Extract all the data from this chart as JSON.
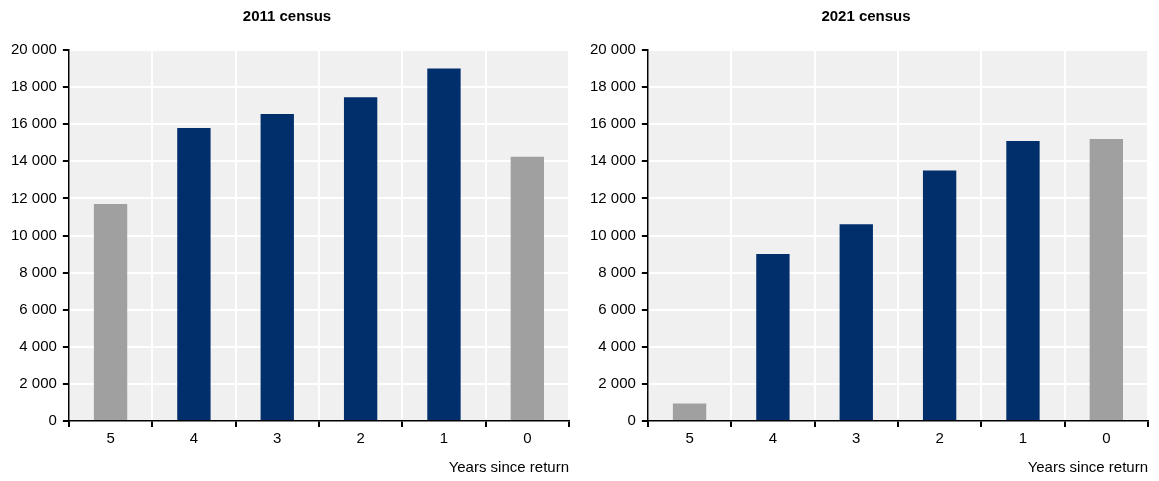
{
  "chart_data": [
    {
      "type": "bar",
      "title": "2011 census",
      "xlabel": "Years since return",
      "categories": [
        "5",
        "4",
        "3",
        "2",
        "1",
        "0"
      ],
      "values": [
        11700,
        15800,
        16550,
        17450,
        19000,
        14250
      ],
      "colors": [
        "#a0a0a0",
        "#002f6c",
        "#002f6c",
        "#002f6c",
        "#002f6c",
        "#a0a0a0"
      ],
      "ylim": [
        0,
        20000
      ],
      "yticks": [
        {
          "value": 0,
          "label": "0"
        },
        {
          "value": 2000,
          "label": "2 000"
        },
        {
          "value": 4000,
          "label": "4 000"
        },
        {
          "value": 6000,
          "label": "6 000"
        },
        {
          "value": 8000,
          "label": "8 000"
        },
        {
          "value": 10000,
          "label": "10 000"
        },
        {
          "value": 12000,
          "label": "12 000"
        },
        {
          "value": 14000,
          "label": "14 000"
        },
        {
          "value": 16000,
          "label": "16 000"
        },
        {
          "value": 18000,
          "label": "18 000"
        },
        {
          "value": 20000,
          "label": "20 000"
        }
      ],
      "grid": true,
      "legend": false
    },
    {
      "type": "bar",
      "title": "2021 census",
      "xlabel": "Years since return",
      "categories": [
        "5",
        "4",
        "3",
        "2",
        "1",
        "0"
      ],
      "values": [
        950,
        9000,
        10600,
        13500,
        15100,
        15200
      ],
      "colors": [
        "#a0a0a0",
        "#002f6c",
        "#002f6c",
        "#002f6c",
        "#002f6c",
        "#a0a0a0"
      ],
      "ylim": [
        0,
        20000
      ],
      "yticks": [
        {
          "value": 0,
          "label": "0"
        },
        {
          "value": 2000,
          "label": "2 000"
        },
        {
          "value": 4000,
          "label": "4 000"
        },
        {
          "value": 6000,
          "label": "6 000"
        },
        {
          "value": 8000,
          "label": "8 000"
        },
        {
          "value": 10000,
          "label": "10 000"
        },
        {
          "value": 12000,
          "label": "12 000"
        },
        {
          "value": 14000,
          "label": "14 000"
        },
        {
          "value": 16000,
          "label": "16 000"
        },
        {
          "value": 18000,
          "label": "18 000"
        },
        {
          "value": 20000,
          "label": "20 000"
        }
      ],
      "grid": true,
      "legend": false
    }
  ]
}
